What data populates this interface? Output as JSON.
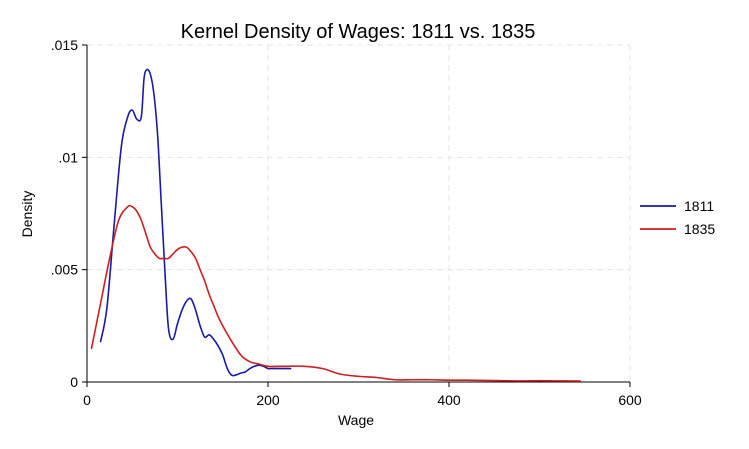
{
  "chart_data": {
    "type": "line",
    "title": "Kernel Density of Wages: 1811 vs. 1835",
    "xlabel": "Wage",
    "ylabel": "Density",
    "xlim": [
      0,
      600
    ],
    "ylim": [
      0,
      0.015
    ],
    "x_ticks": [
      0,
      200,
      400,
      600
    ],
    "x_tick_labels": [
      "0",
      "200",
      "400",
      "600"
    ],
    "y_ticks": [
      0,
      0.005,
      0.01,
      0.015
    ],
    "y_tick_labels": [
      "0",
      ".005",
      ".01",
      ".015"
    ],
    "grid": true,
    "legend_position": "right",
    "series": [
      {
        "name": "1811",
        "color": "#1a1aa6",
        "x": [
          15,
          22,
          30,
          38,
          45,
          50,
          55,
          60,
          63,
          66,
          70,
          74,
          78,
          82,
          86,
          90,
          95,
          100,
          105,
          110,
          115,
          120,
          125,
          130,
          135,
          140,
          145,
          150,
          155,
          160,
          165,
          170,
          175,
          180,
          185,
          190,
          195,
          200,
          205,
          210,
          215,
          220,
          225
        ],
        "y": [
          0.0018,
          0.0033,
          0.007,
          0.0105,
          0.0118,
          0.0121,
          0.0117,
          0.0118,
          0.0135,
          0.0139,
          0.0137,
          0.0128,
          0.011,
          0.008,
          0.005,
          0.0024,
          0.0019,
          0.0026,
          0.0032,
          0.0036,
          0.0037,
          0.0032,
          0.0025,
          0.002,
          0.0021,
          0.0019,
          0.0016,
          0.0012,
          0.0006,
          0.0003,
          0.00032,
          0.0004,
          0.00045,
          0.0006,
          0.0007,
          0.00075,
          0.0007,
          0.0006,
          0.0006,
          0.0006,
          0.0006,
          0.0006,
          0.0006
        ]
      },
      {
        "name": "1835",
        "color": "#cc1f1f",
        "x": [
          5,
          15,
          25,
          35,
          45,
          50,
          55,
          60,
          65,
          70,
          75,
          80,
          85,
          90,
          95,
          100,
          105,
          110,
          115,
          120,
          125,
          130,
          135,
          140,
          145,
          150,
          160,
          170,
          180,
          190,
          200,
          220,
          240,
          260,
          280,
          300,
          320,
          340,
          360,
          380,
          400,
          420,
          440,
          460,
          480,
          500,
          520,
          545
        ],
        "y": [
          0.0015,
          0.0035,
          0.0055,
          0.0072,
          0.0078,
          0.0078,
          0.0076,
          0.0072,
          0.0066,
          0.006,
          0.0057,
          0.0055,
          0.0055,
          0.0055,
          0.0057,
          0.0059,
          0.006,
          0.006,
          0.0058,
          0.0055,
          0.005,
          0.0045,
          0.0039,
          0.0034,
          0.0029,
          0.0025,
          0.0018,
          0.0012,
          0.0009,
          0.0008,
          0.0007,
          0.0007,
          0.0007,
          0.0006,
          0.00035,
          0.00025,
          0.0002,
          0.0001,
          0.0001,
          0.0001,
          8e-05,
          8e-05,
          7e-05,
          6e-05,
          5e-05,
          6e-05,
          5e-05,
          4e-05
        ]
      }
    ]
  }
}
